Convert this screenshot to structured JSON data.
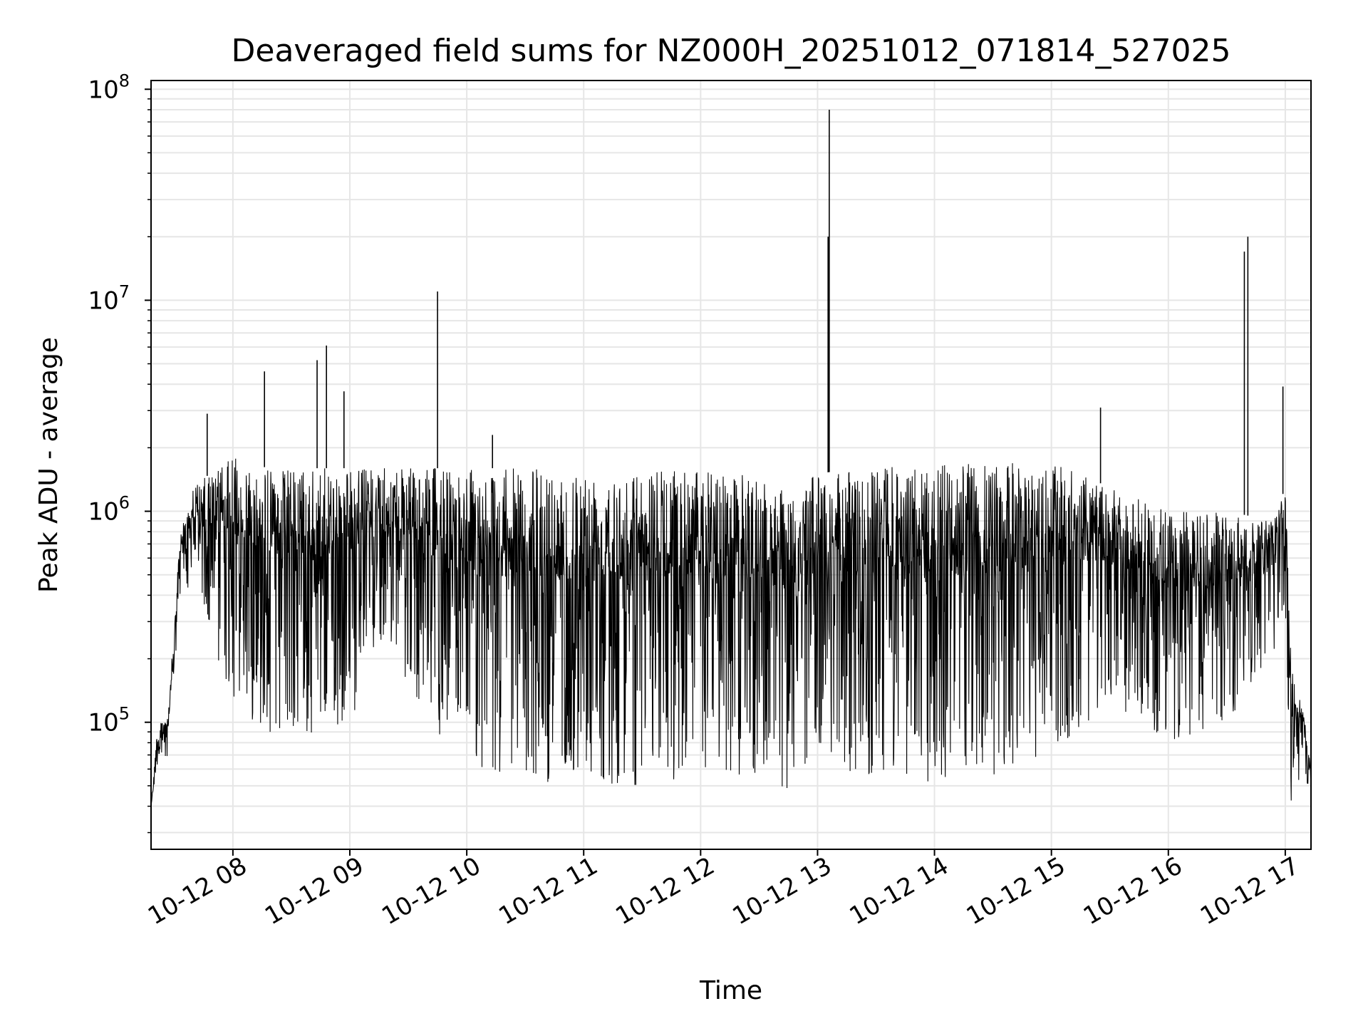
{
  "chart_data": {
    "type": "line",
    "title": "Deaveraged field sums for NZ000H_20251012_071814_527025",
    "xlabel": "Time",
    "ylabel": "Peak ADU - average",
    "yscale": "log",
    "ylim": [
      25000,
      110000000
    ],
    "xlim_hours": [
      7.3,
      17.22
    ],
    "grid": true,
    "line_color": "#000000",
    "grid_color": "#e6e6e6",
    "x_ticks": [
      {
        "label": "10-12 08",
        "hour": 8
      },
      {
        "label": "10-12 09",
        "hour": 9
      },
      {
        "label": "10-12 10",
        "hour": 10
      },
      {
        "label": "10-12 11",
        "hour": 11
      },
      {
        "label": "10-12 12",
        "hour": 12
      },
      {
        "label": "10-12 13",
        "hour": 13
      },
      {
        "label": "10-12 14",
        "hour": 14
      },
      {
        "label": "10-12 15",
        "hour": 15
      },
      {
        "label": "10-12 16",
        "hour": 16
      },
      {
        "label": "10-12 17",
        "hour": 17
      }
    ],
    "y_ticks": [
      {
        "base": "10",
        "exp": "5",
        "value": 100000
      },
      {
        "base": "10",
        "exp": "6",
        "value": 1000000
      },
      {
        "base": "10",
        "exp": "7",
        "value": 10000000
      },
      {
        "base": "10",
        "exp": "8",
        "value": 100000000
      }
    ],
    "series": [
      {
        "name": "Peak ADU - average",
        "envelope": [
          {
            "hour": 7.3,
            "high": 40000,
            "low": 38000
          },
          {
            "hour": 7.35,
            "high": 90000,
            "low": 60000
          },
          {
            "hour": 7.45,
            "high": 120000,
            "low": 65000
          },
          {
            "hour": 7.5,
            "high": 300000,
            "low": 150000
          },
          {
            "hour": 7.55,
            "high": 800000,
            "low": 400000
          },
          {
            "hour": 7.65,
            "high": 1300000,
            "low": 450000
          },
          {
            "hour": 7.8,
            "high": 1500000,
            "low": 250000
          },
          {
            "hour": 8.0,
            "high": 1800000,
            "low": 120000
          },
          {
            "hour": 8.3,
            "high": 1600000,
            "low": 90000
          },
          {
            "hour": 8.6,
            "high": 1600000,
            "low": 80000
          },
          {
            "hour": 9.0,
            "high": 1600000,
            "low": 100000
          },
          {
            "hour": 9.3,
            "high": 1600000,
            "low": 250000
          },
          {
            "hour": 9.6,
            "high": 1600000,
            "low": 120000
          },
          {
            "hour": 9.9,
            "high": 1600000,
            "low": 60000
          },
          {
            "hour": 10.5,
            "high": 1600000,
            "low": 52000
          },
          {
            "hour": 11.0,
            "high": 1600000,
            "low": 52000
          },
          {
            "hour": 11.5,
            "high": 1550000,
            "low": 50000
          },
          {
            "hour": 12.0,
            "high": 1600000,
            "low": 52000
          },
          {
            "hour": 12.5,
            "high": 1450000,
            "low": 55000
          },
          {
            "hour": 12.8,
            "high": 1300000,
            "low": 45000
          },
          {
            "hour": 13.0,
            "high": 1500000,
            "low": 80000
          },
          {
            "hour": 13.3,
            "high": 1600000,
            "low": 55000
          },
          {
            "hour": 14.0,
            "high": 1650000,
            "low": 52000
          },
          {
            "hour": 14.5,
            "high": 1700000,
            "low": 55000
          },
          {
            "hour": 15.0,
            "high": 1700000,
            "low": 70000
          },
          {
            "hour": 15.5,
            "high": 1300000,
            "low": 120000
          },
          {
            "hour": 16.0,
            "high": 1000000,
            "low": 80000
          },
          {
            "hour": 16.5,
            "high": 1000000,
            "low": 100000
          },
          {
            "hour": 16.9,
            "high": 900000,
            "low": 200000
          },
          {
            "hour": 17.0,
            "high": 1300000,
            "low": 300000
          },
          {
            "hour": 17.05,
            "high": 200000,
            "low": 40000
          },
          {
            "hour": 17.15,
            "high": 120000,
            "low": 60000
          },
          {
            "hour": 17.22,
            "high": 60000,
            "low": 45000
          }
        ],
        "spikes": [
          {
            "hour": 7.78,
            "value": 2900000
          },
          {
            "hour": 8.27,
            "value": 4600000
          },
          {
            "hour": 8.72,
            "value": 5200000
          },
          {
            "hour": 8.8,
            "value": 6100000
          },
          {
            "hour": 8.95,
            "value": 3700000
          },
          {
            "hour": 9.75,
            "value": 11000000
          },
          {
            "hour": 10.22,
            "value": 2300000
          },
          {
            "hour": 13.1,
            "value": 80000000
          },
          {
            "hour": 13.09,
            "value": 20000000
          },
          {
            "hour": 15.42,
            "value": 3100000
          },
          {
            "hour": 16.65,
            "value": 17000000
          },
          {
            "hour": 16.68,
            "value": 20000000
          },
          {
            "hour": 16.98,
            "value": 3900000
          }
        ]
      }
    ]
  }
}
